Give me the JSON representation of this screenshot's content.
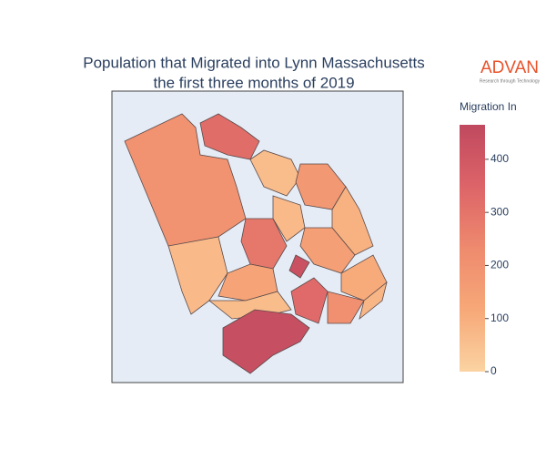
{
  "chart_data": {
    "type": "choropleth",
    "title": [
      "Population that Migrated into Lynn Massachusetts",
      "the first three months of 2019"
    ],
    "colorbar_title": "Migration In",
    "logo": "ADVAN",
    "logo_tagline": "Research through Technology",
    "values": [
      200,
      320,
      60,
      180,
      90,
      290,
      70,
      150,
      70,
      130,
      430,
      110,
      330,
      210,
      60,
      440,
      80
    ],
    "zlim": [
      0,
      465
    ],
    "zticks": [
      0,
      100,
      200,
      300,
      400
    ],
    "colorscale": [
      "#fbd3a2",
      "#f7a878",
      "#ee8a6e",
      "#dd6468",
      "#c0495f"
    ]
  }
}
